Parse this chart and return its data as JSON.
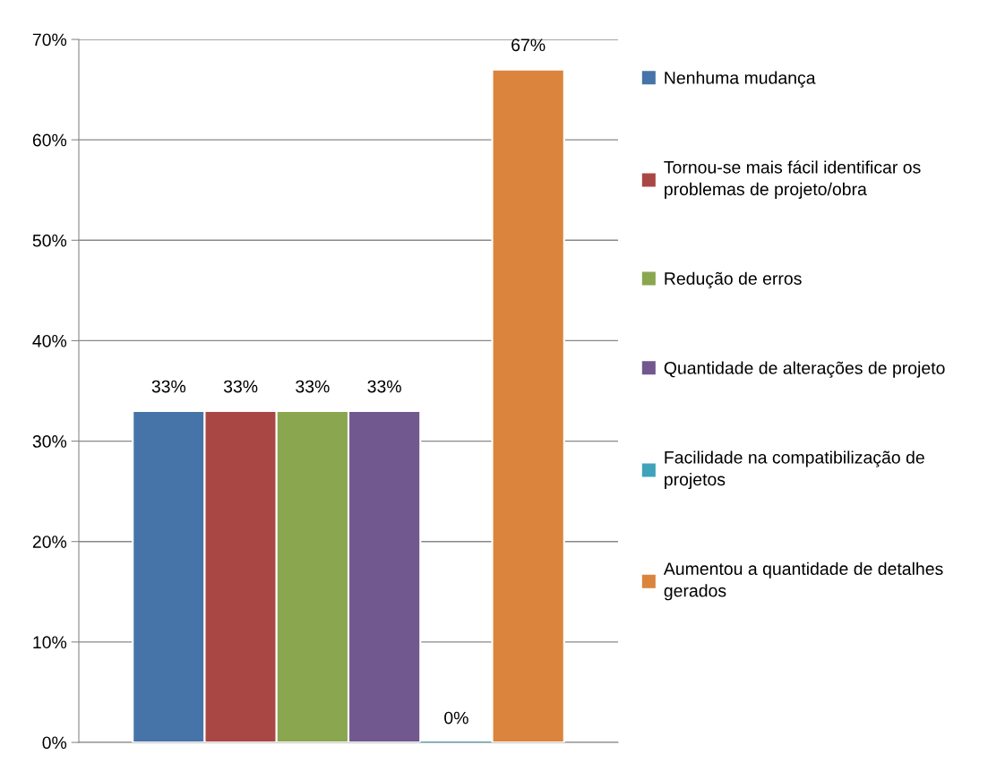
{
  "chart_data": {
    "type": "bar",
    "categories": [
      null
    ],
    "series": [
      {
        "name": "Nenhuma mudança",
        "color": "#4674a8",
        "values": [
          33
        ],
        "value_labels": [
          "33%"
        ]
      },
      {
        "name": "Tornou-se mais fácil identificar os problemas de projeto/obra",
        "color": "#a94744",
        "values": [
          33
        ],
        "value_labels": [
          "33%"
        ]
      },
      {
        "name": "Redução de erros",
        "color": "#8aa64f",
        "values": [
          33
        ],
        "value_labels": [
          "33%"
        ]
      },
      {
        "name": "Quantidade de alterações de projeto",
        "color": "#71588f",
        "values": [
          33
        ],
        "value_labels": [
          "33%"
        ]
      },
      {
        "name": "Facilidade na compatibilização de projetos",
        "color": "#3ea3bb",
        "values": [
          0
        ],
        "value_labels": [
          "0%"
        ]
      },
      {
        "name": "Aumentou a quantidade de detalhes gerados",
        "color": "#db843d",
        "values": [
          67
        ],
        "value_labels": [
          "67%"
        ]
      }
    ],
    "ylim": [
      0,
      70
    ],
    "yticks": [
      {
        "value": 0,
        "label": "0%"
      },
      {
        "value": 10,
        "label": "10%"
      },
      {
        "value": 20,
        "label": "20%"
      },
      {
        "value": 30,
        "label": "30%"
      },
      {
        "value": 40,
        "label": "40%"
      },
      {
        "value": 50,
        "label": "50%"
      },
      {
        "value": 60,
        "label": "60%"
      },
      {
        "value": 70,
        "label": "70%"
      }
    ],
    "grid": "y",
    "legend": "right"
  }
}
